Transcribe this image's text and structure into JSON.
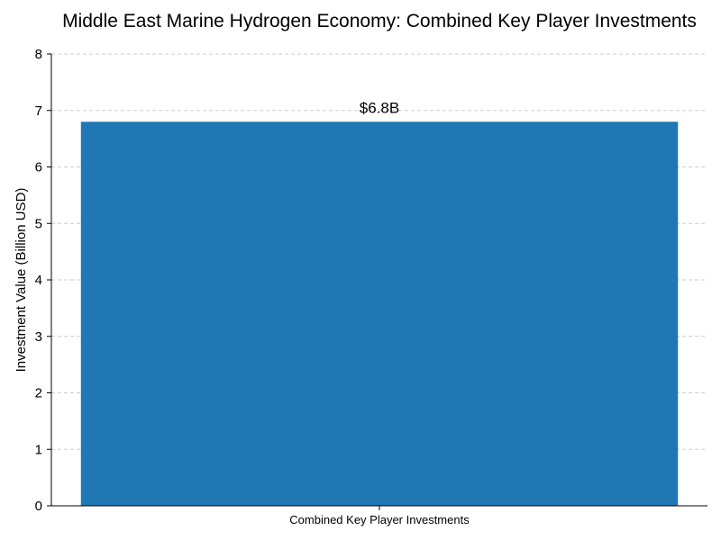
{
  "chart_data": {
    "type": "bar",
    "title": "Middle East Marine Hydrogen Economy: Combined Key Player Investments",
    "xlabel": "",
    "ylabel": "Investment Value (Billion USD)",
    "categories": [
      "Combined Key Player Investments"
    ],
    "values": [
      6.8
    ],
    "data_labels": [
      "$6.8B"
    ],
    "ylim": [
      0,
      8
    ],
    "yticks": [
      0,
      1,
      2,
      3,
      4,
      5,
      6,
      7,
      8
    ],
    "grid": true,
    "legend": "none",
    "bar_color": "#1f77b4"
  }
}
